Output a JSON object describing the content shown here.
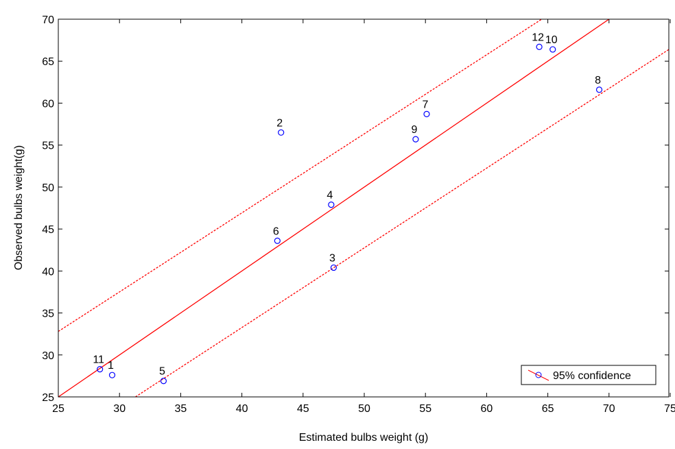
{
  "chart_data": {
    "type": "scatter",
    "xlabel": "Estimated bulbs weight (g)",
    "ylabel": "Observed bulbs weight(g)",
    "xlim": [
      25,
      75
    ],
    "xticks": [
      25,
      30,
      35,
      40,
      45,
      50,
      55,
      60,
      65,
      70,
      75
    ],
    "ylim": [
      25,
      70
    ],
    "yticks": [
      25,
      30,
      35,
      40,
      45,
      50,
      55,
      60,
      65,
      70
    ],
    "legend_position": "lower right",
    "series": [
      {
        "name": "95% confidence",
        "color": "#0000ff",
        "x": [
          29.4,
          43.2,
          47.5,
          47.3,
          33.6,
          42.9,
          55.1,
          69.2,
          54.2,
          65.4,
          28.4,
          64.3
        ],
        "values": [
          27.6,
          56.5,
          40.4,
          47.9,
          26.9,
          43.6,
          58.7,
          61.6,
          55.7,
          66.4,
          28.3,
          66.7
        ],
        "point_labels": [
          "1",
          "2",
          "3",
          "4",
          "5",
          "6",
          "7",
          "8",
          "9",
          "10",
          "11",
          "12"
        ]
      }
    ],
    "fit_lines": [
      {
        "x": [
          25,
          70
        ],
        "values": [
          25,
          70
        ],
        "dashed": false
      },
      {
        "x": [
          25,
          64.5
        ],
        "values": [
          32.8,
          70
        ],
        "dashed": true
      },
      {
        "x": [
          31.3,
          75
        ],
        "values": [
          25,
          66.5
        ],
        "dashed": true
      }
    ],
    "fit_color": "#ff0000"
  }
}
